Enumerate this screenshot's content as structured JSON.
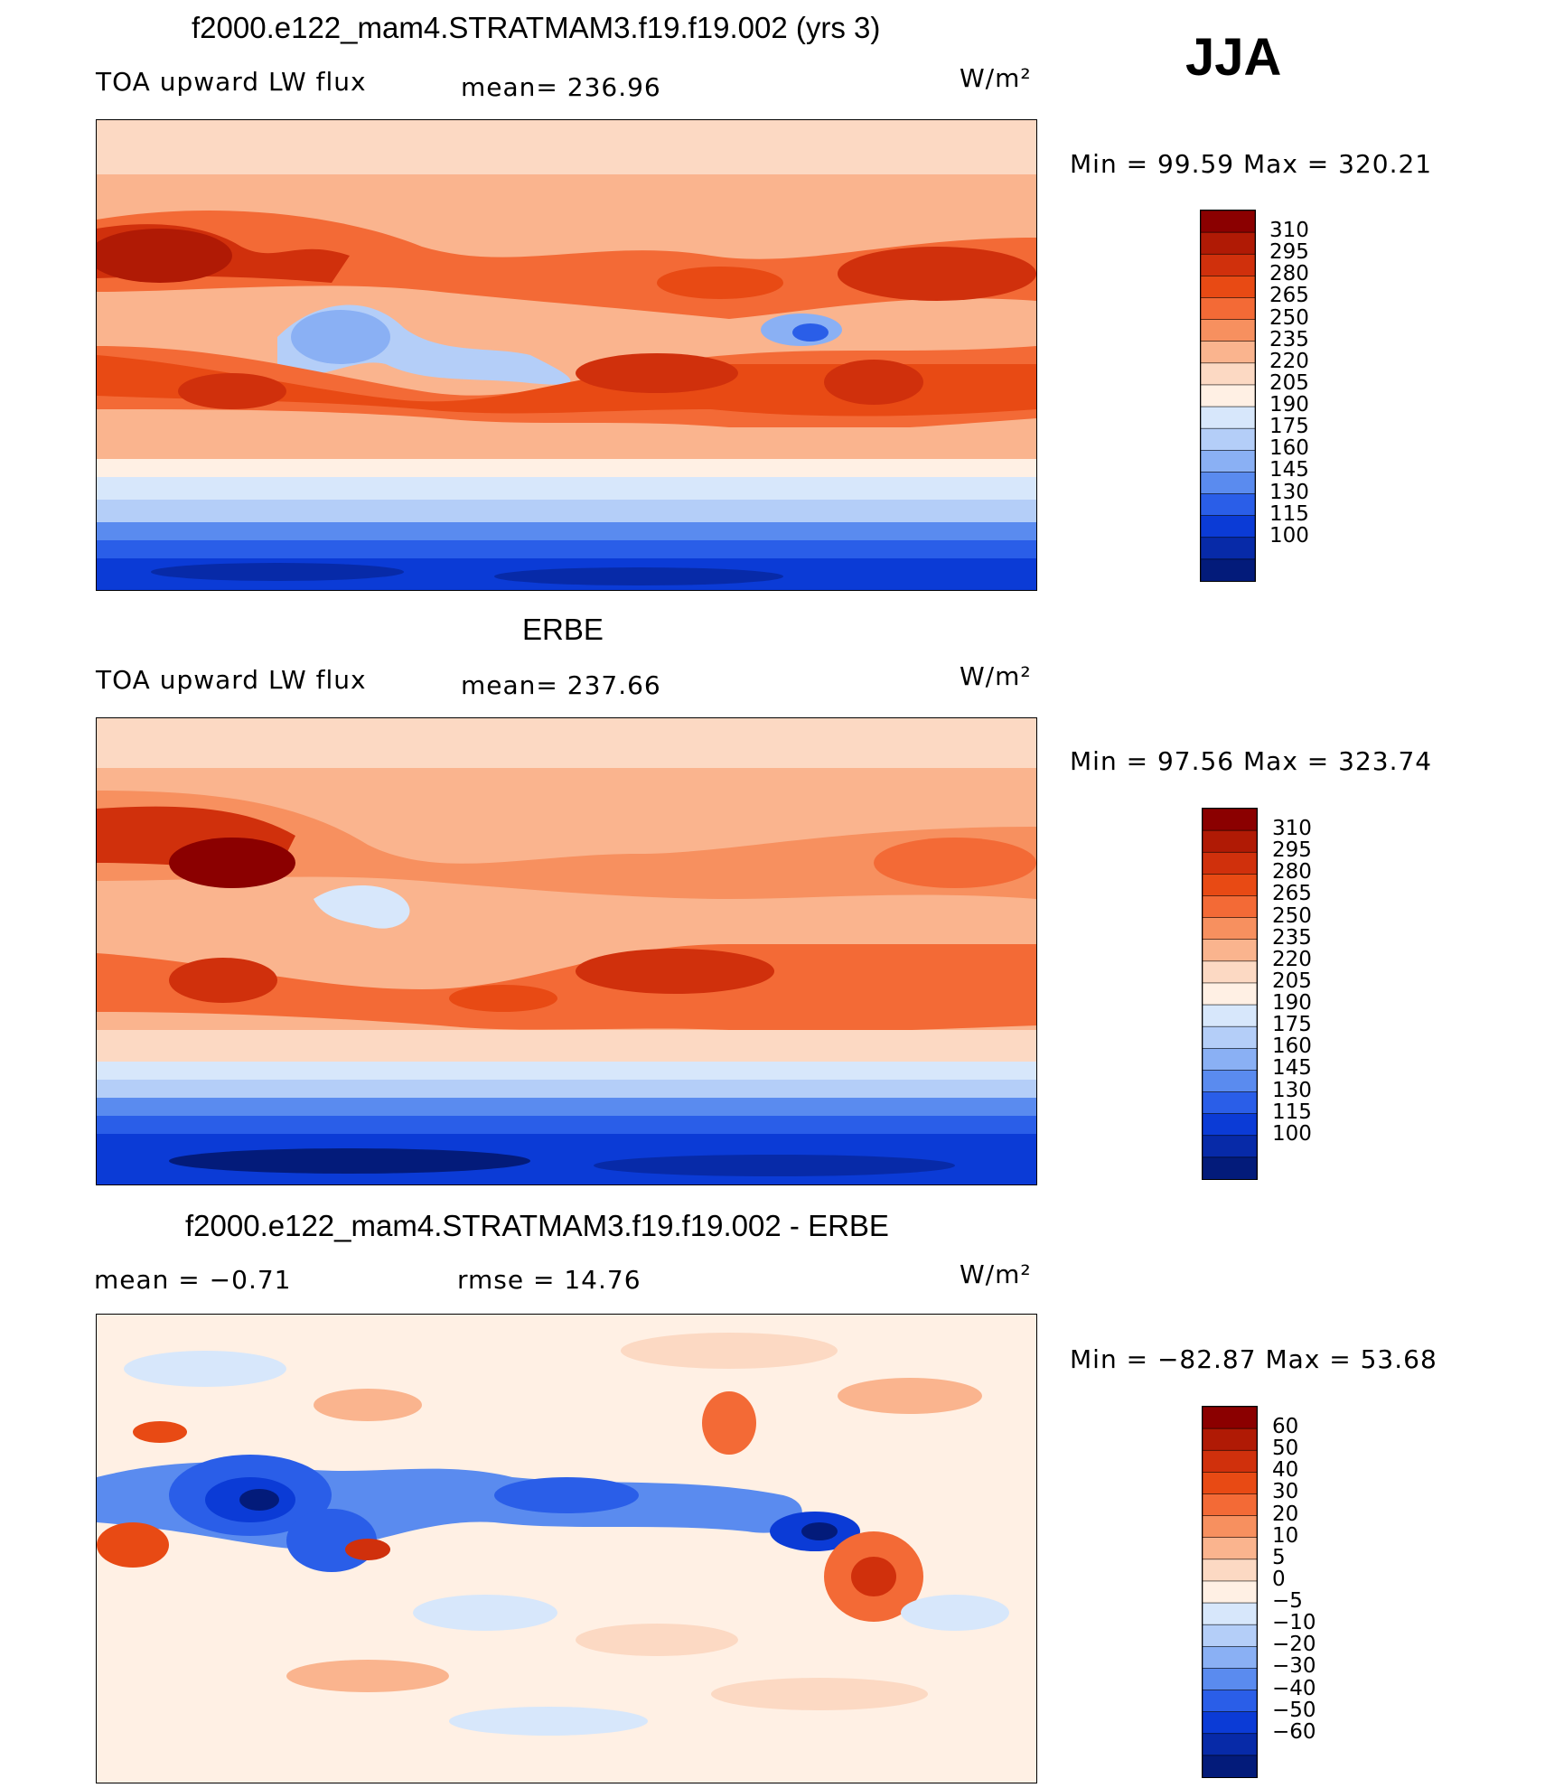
{
  "season": "JJA",
  "panels": [
    {
      "title": "f2000.e122_mam4.STRATMAM3.f19.f19.002 (yrs 3)",
      "left_label": "TOA upward LW flux",
      "stat_label": "mean= 236.96",
      "units": "W/m²",
      "minmax": "Min =   99.59 Max = 320.21",
      "colorbar": {
        "labels": [
          "310",
          "295",
          "280",
          "265",
          "250",
          "235",
          "220",
          "205",
          "190",
          "175",
          "160",
          "145",
          "130",
          "115",
          "100"
        ],
        "colors": [
          "#8b0000",
          "#b01a05",
          "#d0300c",
          "#e84a14",
          "#f36a36",
          "#f7905f",
          "#fab48e",
          "#fcd9c3",
          "#fff0e4",
          "#d7e7fb",
          "#b4cef8",
          "#8ab0f4",
          "#5a8bef",
          "#2a5ee8",
          "#0b3bd6",
          "#072aa8",
          "#031b7a"
        ]
      },
      "chart_data": {
        "type": "heatmap",
        "title": "f2000.e122_mam4.STRATMAM3.f19.f19.002 (yrs 3)",
        "variable": "TOA upward LW flux",
        "units": "W/m2",
        "mean": 236.96,
        "min": 99.59,
        "max": 320.21,
        "contour_levels": [
          100,
          115,
          130,
          145,
          160,
          175,
          190,
          205,
          220,
          235,
          250,
          265,
          280,
          295,
          310
        ]
      }
    },
    {
      "title": "ERBE",
      "left_label": "TOA upward LW flux",
      "stat_label": "mean= 237.66",
      "units": "W/m²",
      "minmax": "Min =   97.56 Max = 323.74",
      "colorbar": {
        "labels": [
          "310",
          "295",
          "280",
          "265",
          "250",
          "235",
          "220",
          "205",
          "190",
          "175",
          "160",
          "145",
          "130",
          "115",
          "100"
        ],
        "colors": [
          "#8b0000",
          "#b01a05",
          "#d0300c",
          "#e84a14",
          "#f36a36",
          "#f7905f",
          "#fab48e",
          "#fcd9c3",
          "#fff0e4",
          "#d7e7fb",
          "#b4cef8",
          "#8ab0f4",
          "#5a8bef",
          "#2a5ee8",
          "#0b3bd6",
          "#072aa8",
          "#031b7a"
        ]
      },
      "chart_data": {
        "type": "heatmap",
        "title": "ERBE",
        "variable": "TOA upward LW flux",
        "units": "W/m2",
        "mean": 237.66,
        "min": 97.56,
        "max": 323.74,
        "contour_levels": [
          100,
          115,
          130,
          145,
          160,
          175,
          190,
          205,
          220,
          235,
          250,
          265,
          280,
          295,
          310
        ]
      }
    },
    {
      "title": "f2000.e122_mam4.STRATMAM3.f19.f19.002 - ERBE",
      "left_label": "mean =   −0.71",
      "stat_label": "rmse =   14.76",
      "units": "W/m²",
      "minmax": "Min = −82.87 Max =   53.68",
      "colorbar": {
        "labels": [
          "60",
          "50",
          "40",
          "30",
          "20",
          "10",
          "5",
          "0",
          "−5",
          "−10",
          "−20",
          "−30",
          "−40",
          "−50",
          "−60"
        ],
        "colors": [
          "#8b0000",
          "#b01a05",
          "#d0300c",
          "#e84a14",
          "#f36a36",
          "#f7905f",
          "#fab48e",
          "#fcd9c3",
          "#fff0e4",
          "#d7e7fb",
          "#b4cef8",
          "#8ab0f4",
          "#5a8bef",
          "#2a5ee8",
          "#0b3bd6",
          "#072aa8",
          "#031b7a"
        ]
      },
      "chart_data": {
        "type": "heatmap",
        "title": "f2000.e122_mam4.STRATMAM3.f19.f19.002 - ERBE",
        "units": "W/m2",
        "mean": -0.71,
        "rmse": 14.76,
        "min": -82.87,
        "max": 53.68,
        "contour_levels": [
          -60,
          -50,
          -40,
          -30,
          -20,
          -10,
          -5,
          0,
          5,
          10,
          20,
          30,
          40,
          50,
          60
        ]
      }
    }
  ]
}
